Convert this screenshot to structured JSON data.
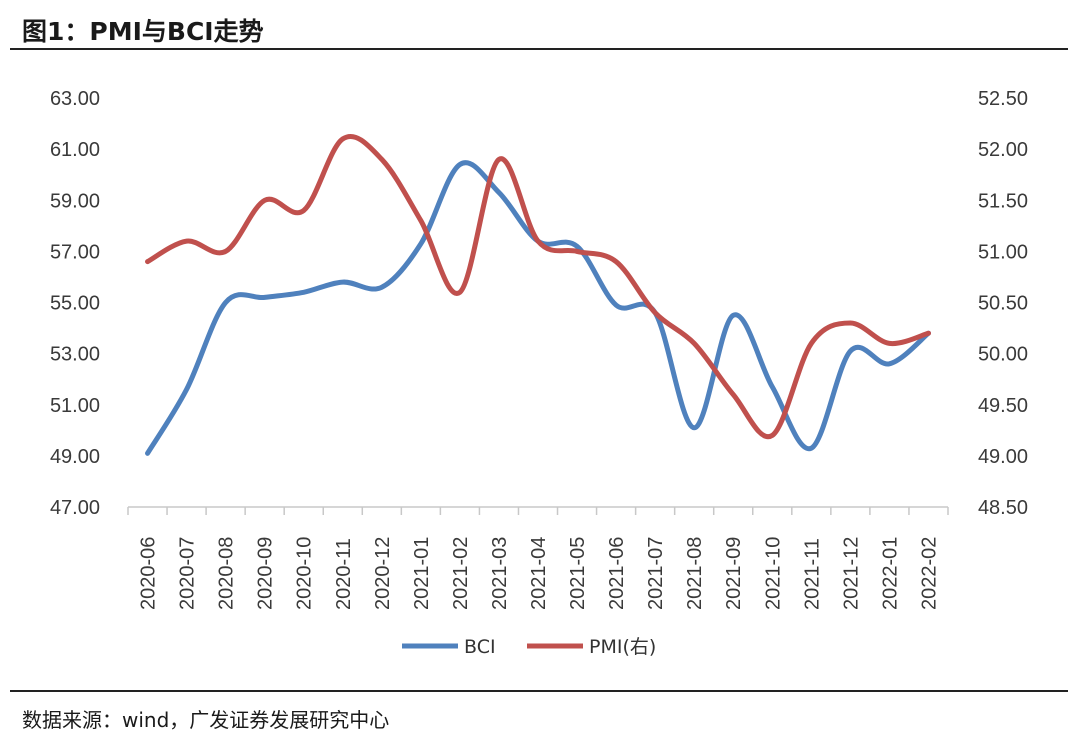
{
  "figure_title": "图1：PMI与BCI走势",
  "source_note": "数据来源：wind，广发证券发展研究中心",
  "chart_data": {
    "type": "line",
    "categories": [
      "2020-06",
      "2020-07",
      "2020-08",
      "2020-09",
      "2020-10",
      "2020-11",
      "2020-12",
      "2021-01",
      "2021-02",
      "2021-03",
      "2021-04",
      "2021-05",
      "2021-06",
      "2021-07",
      "2021-08",
      "2021-09",
      "2021-10",
      "2021-11",
      "2021-12",
      "2022-01",
      "2022-02"
    ],
    "series": [
      {
        "name": "BCI",
        "axis": "left",
        "color": "#4f81bd",
        "values": [
          49.1,
          51.6,
          55.0,
          55.2,
          55.4,
          55.8,
          55.6,
          57.3,
          60.4,
          59.3,
          57.4,
          57.2,
          54.9,
          54.6,
          50.1,
          54.5,
          51.7,
          49.3,
          53.1,
          52.6,
          53.8
        ]
      },
      {
        "name": "PMI(右)",
        "axis": "right",
        "color": "#c0504d",
        "values": [
          50.9,
          51.1,
          51.0,
          51.5,
          51.4,
          52.1,
          51.9,
          51.3,
          50.6,
          51.9,
          51.1,
          51.0,
          50.9,
          50.4,
          50.1,
          49.6,
          49.2,
          50.1,
          50.3,
          50.1,
          50.2
        ]
      }
    ],
    "y_left": {
      "min": 47,
      "max": 63,
      "step": 2,
      "decimals": 2
    },
    "y_right": {
      "min": 48.5,
      "max": 52.5,
      "step": 0.5,
      "decimals": 2
    },
    "legend_position": "bottom-center",
    "grid": false
  }
}
